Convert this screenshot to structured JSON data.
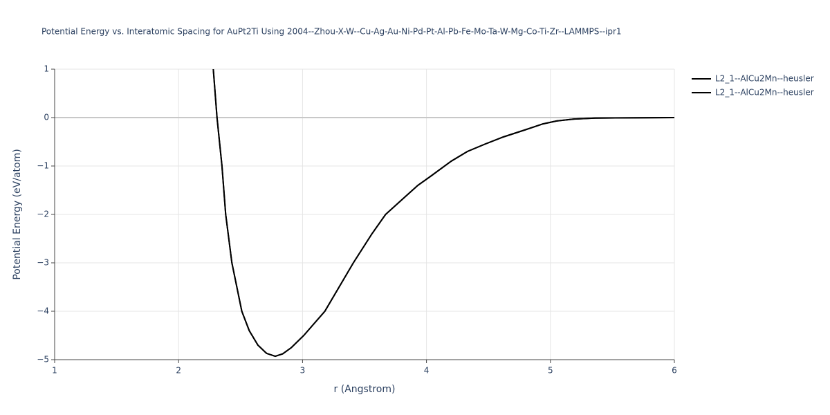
{
  "chart_data": {
    "type": "line",
    "title": "Potential Energy vs. Interatomic Spacing for AuPt2Ti Using 2004--Zhou-X-W--Cu-Ag-Au-Ni-Pd-Pt-Al-Pb-Fe-Mo-Ta-W-Mg-Co-Ti-Zr--LAMMPS--ipr1",
    "x_label": "r (Angstrom)",
    "y_label": "Potential Energy (eV/atom)",
    "x": [
      2.28,
      2.31,
      2.35,
      2.38,
      2.43,
      2.51,
      2.57,
      2.64,
      2.71,
      2.78,
      2.84,
      2.91,
      3.01,
      3.18,
      3.41,
      3.56,
      3.67,
      3.8,
      3.93,
      4.04,
      4.2,
      4.33,
      4.47,
      4.62,
      4.8,
      4.94,
      5.05,
      5.19,
      5.36,
      6
    ],
    "series": [
      {
        "name": "L2_1--AlCu2Mn--heusler",
        "color": "#000000",
        "values": [
          1,
          0,
          -1,
          -2,
          -3,
          -4,
          -4.4,
          -4.7,
          -4.87,
          -4.93,
          -4.88,
          -4.75,
          -4.5,
          -4,
          -3,
          -2.4,
          -2,
          -1.7,
          -1.4,
          -1.2,
          -0.9,
          -0.7,
          -0.55,
          -0.4,
          -0.25,
          -0.13,
          -0.07,
          -0.03,
          -0.01,
          0
        ]
      },
      {
        "name": "L2_1--AlCu2Mn--heusler",
        "color": "#000000",
        "values": [
          1,
          0,
          -1,
          -2,
          -3,
          -4,
          -4.4,
          -4.7,
          -4.87,
          -4.93,
          -4.88,
          -4.75,
          -4.5,
          -4,
          -3,
          -2.4,
          -2,
          -1.7,
          -1.4,
          -1.2,
          -0.9,
          -0.7,
          -0.55,
          -0.4,
          -0.25,
          -0.13,
          -0.07,
          -0.03,
          -0.01,
          0
        ]
      }
    ],
    "xlim": [
      1,
      6
    ],
    "xticks": [
      1,
      2,
      3,
      4,
      5,
      6
    ],
    "ylim": [
      -5,
      1
    ],
    "yticks": [
      {
        "value": -5,
        "label": "−5"
      },
      {
        "value": -4,
        "label": "−4"
      },
      {
        "value": -3,
        "label": "−3"
      },
      {
        "value": -2,
        "label": "−2"
      },
      {
        "value": -1,
        "label": "−1"
      },
      0,
      1
    ],
    "grid": true,
    "legend": "top-right"
  }
}
